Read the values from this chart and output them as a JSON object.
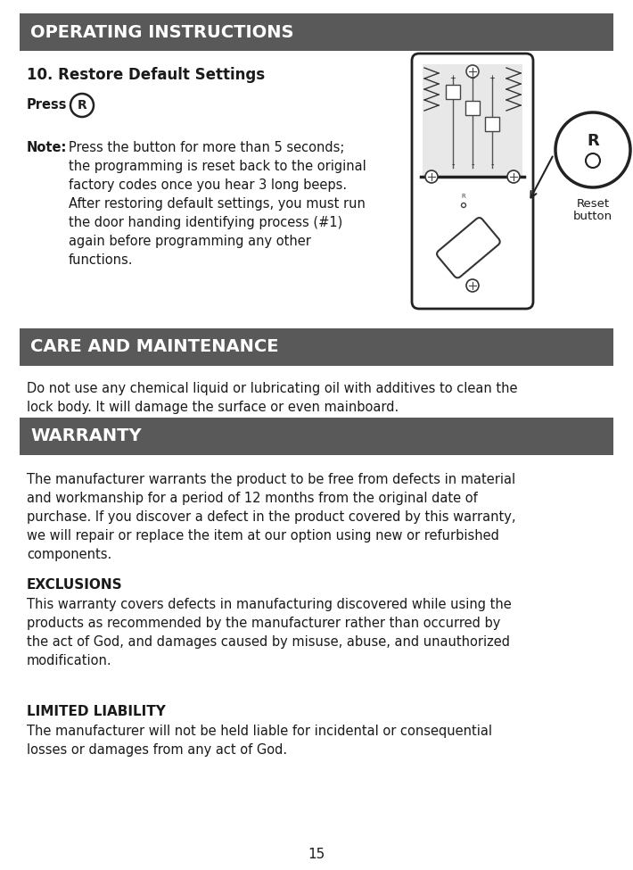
{
  "bg_color": "#ffffff",
  "header_bg": "#595959",
  "header_text_color": "#ffffff",
  "body_text_color": "#1a1a1a",
  "border_color": "#595959",
  "page_number": "15",
  "section1_header": "OPERATING INSTRUCTIONS",
  "section1_subtitle": "10. Restore Default Settings",
  "press_label": "Press",
  "r_button_label": "R",
  "note_label": "Note:",
  "note_text": "Press the button for more than 5 seconds;\nthe programming is reset back to the original\nfactory codes once you hear 3 long beeps.\nAfter restoring default settings, you must run\nthe door handing identifying process (#1)\nagain before programming any other\nfunctions.",
  "reset_label_line1": "Reset",
  "reset_label_line2": "button",
  "section2_header": "CARE AND MAINTENANCE",
  "section2_body": "Do not use any chemical liquid or lubricating oil with additives to clean the\nlock body. It will damage the surface or even mainboard.",
  "section3_header": "WARRANTY",
  "section3_body": "The manufacturer warrants the product to be free from defects in material\nand workmanship for a period of 12 months from the original date of\npurchase. If you discover a defect in the product covered by this warranty,\nwe will repair or replace the item at our option using new or refurbished\ncomponents.",
  "exclusions_header": "EXCLUSIONS",
  "exclusions_body": "This warranty covers defects in manufacturing discovered while using the\nproducts as recommended by the manufacturer rather than occurred by\nthe act of God, and damages caused by misuse, abuse, and unauthorized\nmodification.",
  "liability_header": "LIMITED LIABILITY",
  "liability_body": "The manufacturer will not be held liable for incidental or consequential\nlosses or damages from any act of God."
}
